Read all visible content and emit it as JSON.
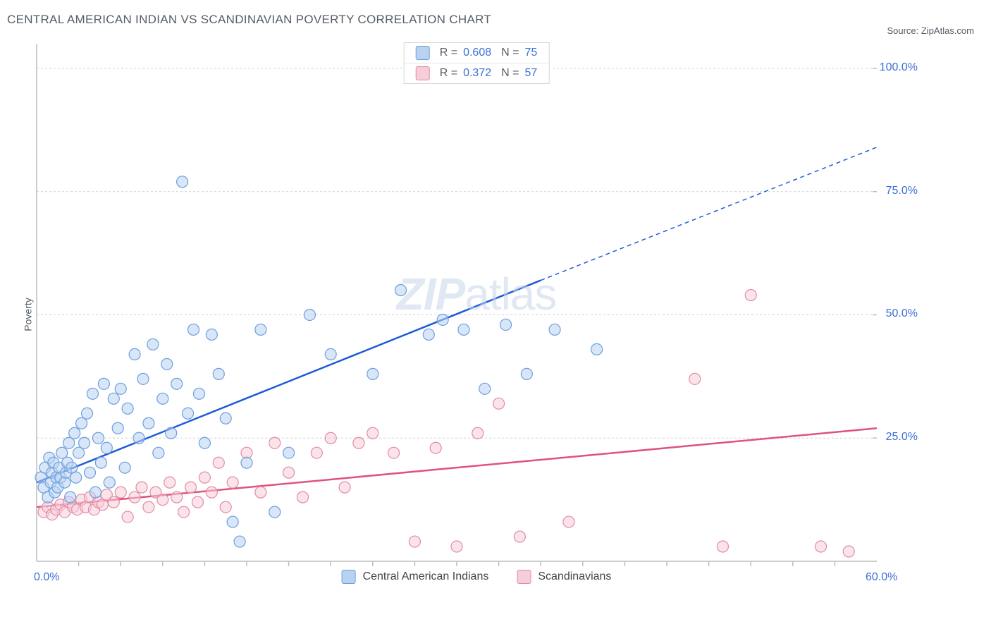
{
  "title": "CENTRAL AMERICAN INDIAN VS SCANDINAVIAN POVERTY CORRELATION CHART",
  "source_prefix": "Source: ",
  "source_name": "ZipAtlas.com",
  "watermark_zip": "ZIP",
  "watermark_atlas": "atlas",
  "y_axis_label": "Poverty",
  "colors": {
    "series_a_fill": "#b9d2f1",
    "series_a_stroke": "#6a9fe0",
    "series_a_line": "#1e5bd6",
    "series_b_fill": "#f6cdd8",
    "series_b_stroke": "#e38ba4",
    "series_b_line": "#e0527b",
    "grid": "#d0d0d0",
    "axis": "#bdbdbd",
    "y_label_color": "#3a6fd8",
    "x_label_color": "#3a6fd8",
    "text": "#555d66"
  },
  "chart": {
    "type": "scatter",
    "xlim": [
      0,
      60
    ],
    "ylim": [
      0,
      105
    ],
    "x_ticks": [
      0,
      60
    ],
    "x_tick_labels": [
      "0.0%",
      "60.0%"
    ],
    "x_minor_ticks": [
      3,
      6,
      9,
      12,
      15,
      18,
      21,
      24,
      27,
      30,
      33,
      36,
      39,
      42,
      45,
      48,
      51,
      54,
      57
    ],
    "y_ticks": [
      25,
      50,
      75,
      100
    ],
    "y_tick_labels": [
      "25.0%",
      "50.0%",
      "75.0%",
      "100.0%"
    ],
    "marker_radius": 8,
    "marker_opacity": 0.55,
    "background": "#ffffff"
  },
  "legend_top": [
    {
      "swatch_fill": "#b9d2f1",
      "swatch_stroke": "#6a9fe0",
      "r_label": "R =",
      "r_value": "0.608",
      "n_label": "N =",
      "n_value": "75",
      "value_color": "#3a6fd8"
    },
    {
      "swatch_fill": "#f6cdd8",
      "swatch_stroke": "#e38ba4",
      "r_label": "R =",
      "r_value": "0.372",
      "n_label": "N =",
      "n_value": "57",
      "value_color": "#3a6fd8"
    }
  ],
  "legend_bottom": [
    {
      "swatch_fill": "#b9d2f1",
      "swatch_stroke": "#6a9fe0",
      "label": "Central American Indians"
    },
    {
      "swatch_fill": "#f6cdd8",
      "swatch_stroke": "#e38ba4",
      "label": "Scandinavians"
    }
  ],
  "series_a": {
    "name": "Central American Indians",
    "regression": {
      "x1": 0,
      "y1": 16,
      "x2_solid": 36,
      "y2_solid": 57,
      "x2": 60,
      "y2": 84
    },
    "points": [
      [
        0.3,
        17
      ],
      [
        0.5,
        15
      ],
      [
        0.6,
        19
      ],
      [
        0.8,
        13
      ],
      [
        0.9,
        21
      ],
      [
        1.0,
        16
      ],
      [
        1.1,
        18
      ],
      [
        1.2,
        20
      ],
      [
        1.3,
        14
      ],
      [
        1.4,
        17
      ],
      [
        1.5,
        15
      ],
      [
        1.6,
        19
      ],
      [
        1.7,
        17
      ],
      [
        1.8,
        22
      ],
      [
        2.0,
        16
      ],
      [
        2.1,
        18
      ],
      [
        2.2,
        20
      ],
      [
        2.3,
        24
      ],
      [
        2.4,
        13
      ],
      [
        2.5,
        19
      ],
      [
        2.7,
        26
      ],
      [
        2.8,
        17
      ],
      [
        3.0,
        22
      ],
      [
        3.2,
        28
      ],
      [
        3.4,
        24
      ],
      [
        3.6,
        30
      ],
      [
        3.8,
        18
      ],
      [
        4.0,
        34
      ],
      [
        4.2,
        14
      ],
      [
        4.4,
        25
      ],
      [
        4.6,
        20
      ],
      [
        4.8,
        36
      ],
      [
        5.0,
        23
      ],
      [
        5.2,
        16
      ],
      [
        5.5,
        33
      ],
      [
        5.8,
        27
      ],
      [
        6.0,
        35
      ],
      [
        6.3,
        19
      ],
      [
        6.5,
        31
      ],
      [
        7.0,
        42
      ],
      [
        7.3,
        25
      ],
      [
        7.6,
        37
      ],
      [
        8.0,
        28
      ],
      [
        8.3,
        44
      ],
      [
        8.7,
        22
      ],
      [
        9.0,
        33
      ],
      [
        9.3,
        40
      ],
      [
        9.6,
        26
      ],
      [
        10.0,
        36
      ],
      [
        10.4,
        77
      ],
      [
        10.8,
        30
      ],
      [
        11.2,
        47
      ],
      [
        11.6,
        34
      ],
      [
        12.0,
        24
      ],
      [
        12.5,
        46
      ],
      [
        13.0,
        38
      ],
      [
        13.5,
        29
      ],
      [
        14.0,
        8
      ],
      [
        14.5,
        4
      ],
      [
        15.0,
        20
      ],
      [
        16.0,
        47
      ],
      [
        17.0,
        10
      ],
      [
        18.0,
        22
      ],
      [
        19.5,
        50
      ],
      [
        21.0,
        42
      ],
      [
        24.0,
        38
      ],
      [
        26.0,
        55
      ],
      [
        28.0,
        46
      ],
      [
        29.0,
        49
      ],
      [
        30.5,
        47
      ],
      [
        32.0,
        35
      ],
      [
        33.5,
        48
      ],
      [
        35.0,
        38
      ],
      [
        37.0,
        47
      ],
      [
        40.0,
        43
      ]
    ]
  },
  "series_b": {
    "name": "Scandinavians",
    "regression": {
      "x1": 0,
      "y1": 11,
      "x2": 60,
      "y2": 27
    },
    "points": [
      [
        0.5,
        10
      ],
      [
        0.8,
        11
      ],
      [
        1.1,
        9.5
      ],
      [
        1.4,
        10.5
      ],
      [
        1.7,
        11.5
      ],
      [
        2.0,
        10
      ],
      [
        2.3,
        12
      ],
      [
        2.6,
        11
      ],
      [
        2.9,
        10.5
      ],
      [
        3.2,
        12.5
      ],
      [
        3.5,
        11
      ],
      [
        3.8,
        13
      ],
      [
        4.1,
        10.5
      ],
      [
        4.4,
        12
      ],
      [
        4.7,
        11.5
      ],
      [
        5.0,
        13.5
      ],
      [
        5.5,
        12
      ],
      [
        6.0,
        14
      ],
      [
        6.5,
        9
      ],
      [
        7.0,
        13
      ],
      [
        7.5,
        15
      ],
      [
        8.0,
        11
      ],
      [
        8.5,
        14
      ],
      [
        9.0,
        12.5
      ],
      [
        9.5,
        16
      ],
      [
        10.0,
        13
      ],
      [
        10.5,
        10
      ],
      [
        11.0,
        15
      ],
      [
        11.5,
        12
      ],
      [
        12.0,
        17
      ],
      [
        12.5,
        14
      ],
      [
        13.0,
        20
      ],
      [
        13.5,
        11
      ],
      [
        14.0,
        16
      ],
      [
        15.0,
        22
      ],
      [
        16.0,
        14
      ],
      [
        17.0,
        24
      ],
      [
        18.0,
        18
      ],
      [
        19.0,
        13
      ],
      [
        20.0,
        22
      ],
      [
        21.0,
        25
      ],
      [
        22.0,
        15
      ],
      [
        23.0,
        24
      ],
      [
        24.0,
        26
      ],
      [
        25.5,
        22
      ],
      [
        27.0,
        4
      ],
      [
        28.5,
        23
      ],
      [
        30.0,
        3
      ],
      [
        31.5,
        26
      ],
      [
        33.0,
        32
      ],
      [
        34.5,
        5
      ],
      [
        38.0,
        8
      ],
      [
        47.0,
        37
      ],
      [
        49.0,
        3
      ],
      [
        51.0,
        54
      ],
      [
        56.0,
        3
      ],
      [
        58.0,
        2
      ]
    ]
  }
}
